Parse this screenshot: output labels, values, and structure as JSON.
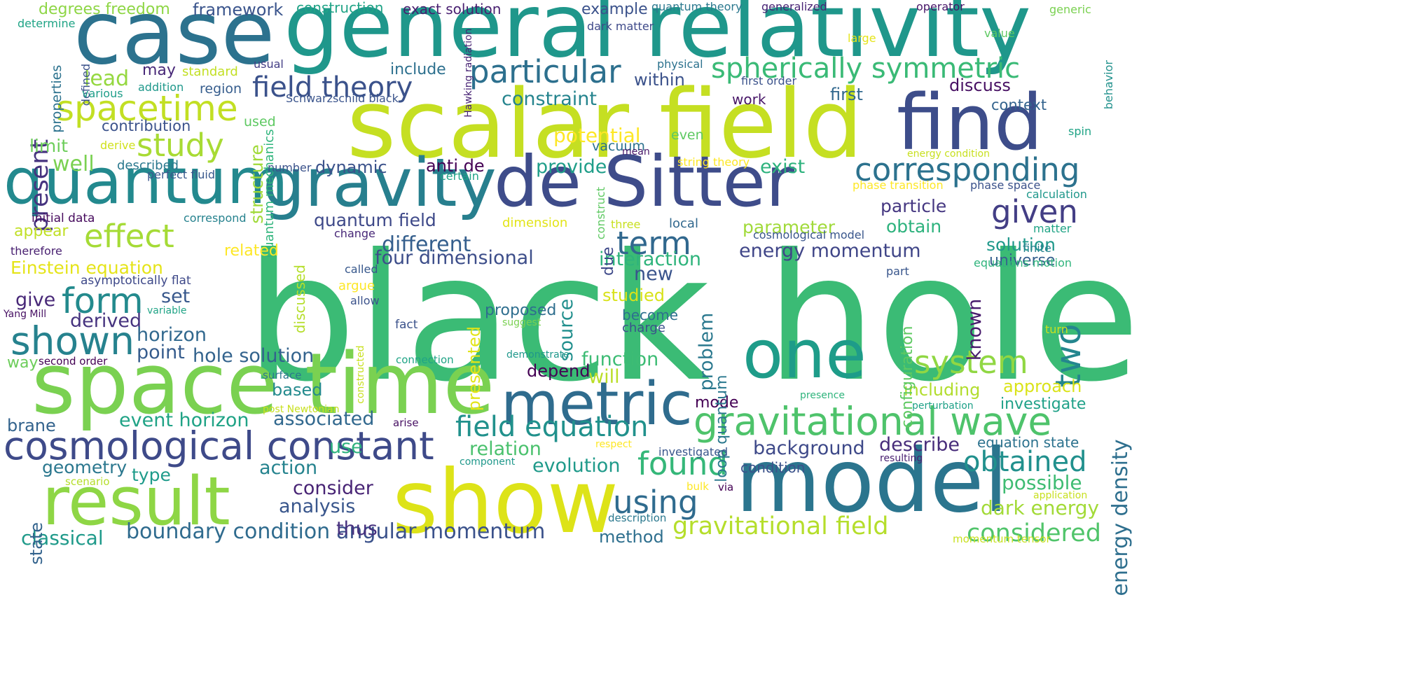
{
  "words": [
    {
      "text": "black hole",
      "color": "#3bbb75"
    },
    {
      "text": "scalar field",
      "color": "#c5df22"
    },
    {
      "text": "general relativity",
      "color": "#1f978b"
    },
    {
      "text": "case",
      "color": "#2c728e"
    },
    {
      "text": "space time",
      "color": "#7ad151"
    },
    {
      "text": "show",
      "color": "#dde318"
    },
    {
      "text": "de Sitter",
      "color": "#3e4c8a"
    },
    {
      "text": "model",
      "color": "#2b758e"
    },
    {
      "text": "find",
      "color": "#3d4d8a"
    },
    {
      "text": "quantum",
      "color": "#23898e"
    },
    {
      "text": "gravity",
      "color": "#277f8e"
    },
    {
      "text": "one",
      "color": "#1e9c89"
    },
    {
      "text": "metric",
      "color": "#2f6c8e"
    },
    {
      "text": "result",
      "color": "#8ed645"
    },
    {
      "text": "cosmological constant",
      "color": "#3e4a89"
    },
    {
      "text": "gravitational wave",
      "color": "#4ec36b"
    },
    {
      "text": "spacetime",
      "color": "#c2df23"
    },
    {
      "text": "particular",
      "color": "#2d708e"
    },
    {
      "text": "spherically symmetric",
      "color": "#3aba76"
    },
    {
      "text": "corresponding",
      "color": "#2c728e"
    },
    {
      "text": "field theory",
      "color": "#3b528b"
    },
    {
      "text": "given",
      "color": "#433e85"
    },
    {
      "text": "term",
      "color": "#31688e"
    },
    {
      "text": "effect",
      "color": "#a5db36"
    },
    {
      "text": "form",
      "color": "#238a8d"
    },
    {
      "text": "shown",
      "color": "#26828e"
    },
    {
      "text": "study",
      "color": "#a8db34"
    },
    {
      "text": "field equation",
      "color": "#21918c"
    },
    {
      "text": "found",
      "color": "#35b779"
    },
    {
      "text": "system",
      "color": "#90d743"
    },
    {
      "text": "using",
      "color": "#2f6b8e"
    },
    {
      "text": "obtained",
      "color": "#21908d"
    },
    {
      "text": "two",
      "color": "#24868e"
    },
    {
      "text": "energy density",
      "color": "#2e6f8e"
    },
    {
      "text": "gravitational field",
      "color": "#b5de2b"
    },
    {
      "text": "considered",
      "color": "#50c46a"
    },
    {
      "text": "boundary condition",
      "color": "#2f6b8e"
    },
    {
      "text": "angular momentum",
      "color": "#3b528b"
    },
    {
      "text": "classical",
      "color": "#1f9a8a"
    },
    {
      "text": "four dimensional",
      "color": "#3d4e8a"
    },
    {
      "text": "different",
      "color": "#355f8d"
    },
    {
      "text": "energy momentum",
      "color": "#404688"
    },
    {
      "text": "interaction",
      "color": "#2fb47c"
    },
    {
      "text": "background",
      "color": "#3e4989"
    },
    {
      "text": "describe",
      "color": "#472c7a"
    },
    {
      "text": "possible",
      "color": "#3fbc73"
    },
    {
      "text": "dark energy",
      "color": "#a2da37"
    },
    {
      "text": "equation state",
      "color": "#2c728e"
    },
    {
      "text": "Einstein equation",
      "color": "#e5e419"
    },
    {
      "text": "present",
      "color": "#46337f"
    },
    {
      "text": "lead",
      "color": "#95d840"
    },
    {
      "text": "limit",
      "color": "#6ccd5a"
    },
    {
      "text": "well",
      "color": "#7ad151"
    },
    {
      "text": "appear",
      "color": "#c0df25"
    },
    {
      "text": "give",
      "color": "#482878"
    },
    {
      "text": "set",
      "color": "#38588c"
    },
    {
      "text": "derived",
      "color": "#46337f"
    },
    {
      "text": "horizon",
      "color": "#31688e"
    },
    {
      "text": "point",
      "color": "#365c8d"
    },
    {
      "text": "hole solution",
      "color": "#33638d"
    },
    {
      "text": "event horizon",
      "color": "#20a386"
    },
    {
      "text": "associated",
      "color": "#31688e"
    },
    {
      "text": "use",
      "color": "#2db27d"
    },
    {
      "text": "action",
      "color": "#25838e"
    },
    {
      "text": "consider",
      "color": "#482475"
    },
    {
      "text": "analysis",
      "color": "#39568c"
    },
    {
      "text": "thus",
      "color": "#46307e"
    },
    {
      "text": "brane",
      "color": "#33638d"
    },
    {
      "text": "geometry",
      "color": "#2a778e"
    },
    {
      "text": "type",
      "color": "#1e9b8a"
    },
    {
      "text": "state",
      "color": "#33638d"
    },
    {
      "text": "way",
      "color": "#6ccd5a"
    },
    {
      "text": "based",
      "color": "#238a8d"
    },
    {
      "text": "relation",
      "color": "#4ac16d"
    },
    {
      "text": "evolution",
      "color": "#1f9a8a"
    },
    {
      "text": "method",
      "color": "#2e6f8e"
    },
    {
      "text": "source",
      "color": "#218f8d"
    },
    {
      "text": "problem",
      "color": "#2a788e"
    },
    {
      "text": "studied",
      "color": "#d8e219"
    },
    {
      "text": "become",
      "color": "#2d708e"
    },
    {
      "text": "new",
      "color": "#3a548c"
    },
    {
      "text": "function",
      "color": "#3dbc74"
    },
    {
      "text": "will",
      "color": "#bade28"
    },
    {
      "text": "depend",
      "color": "#440154"
    },
    {
      "text": "proposed",
      "color": "#2e6e8e"
    },
    {
      "text": "presented",
      "color": "#e2e418"
    },
    {
      "text": "potential",
      "color": "#fde725"
    },
    {
      "text": "provide",
      "color": "#1f9e89"
    },
    {
      "text": "exist",
      "color": "#2db27d"
    },
    {
      "text": "dynamic",
      "color": "#3b528b"
    },
    {
      "text": "anti de",
      "color": "#440154"
    },
    {
      "text": "quantum field",
      "color": "#3e4989"
    },
    {
      "text": "particle",
      "color": "#453781"
    },
    {
      "text": "parameter",
      "color": "#a0da39"
    },
    {
      "text": "obtain",
      "color": "#2db27d"
    },
    {
      "text": "solution",
      "color": "#1f988b"
    },
    {
      "text": "universe",
      "color": "#355f8d"
    },
    {
      "text": "known",
      "color": "#481b6d"
    },
    {
      "text": "approach",
      "color": "#dae319"
    },
    {
      "text": "including",
      "color": "#b2dd2d"
    },
    {
      "text": "investigate",
      "color": "#1fa188"
    },
    {
      "text": "configuration",
      "color": "#5ec962"
    },
    {
      "text": "mode",
      "color": "#440154"
    },
    {
      "text": "loop quantum",
      "color": "#2a788e"
    },
    {
      "text": "due",
      "color": "#3e4989"
    },
    {
      "text": "constraint",
      "color": "#25848e"
    },
    {
      "text": "discuss",
      "color": "#471063"
    },
    {
      "text": "first",
      "color": "#31688e"
    },
    {
      "text": "context",
      "color": "#33638d"
    },
    {
      "text": "work",
      "color": "#481668"
    },
    {
      "text": "within",
      "color": "#3b528b"
    },
    {
      "text": "include",
      "color": "#2d708e"
    },
    {
      "text": "may",
      "color": "#482878"
    },
    {
      "text": "standard",
      "color": "#c2df23"
    },
    {
      "text": "region",
      "color": "#365d8d"
    },
    {
      "text": "framework",
      "color": "#3a548c"
    },
    {
      "text": "degrees freedom",
      "color": "#8ed645"
    },
    {
      "text": "construction",
      "color": "#20a386"
    },
    {
      "text": "exact solution",
      "color": "#481f70"
    },
    {
      "text": "example",
      "color": "#3b528b"
    },
    {
      "text": "quantum theory",
      "color": "#2a788e"
    },
    {
      "text": "generalized",
      "color": "#482475"
    },
    {
      "text": "operator",
      "color": "#481668"
    },
    {
      "text": "generic",
      "color": "#7ad151"
    },
    {
      "text": "determine",
      "color": "#20a486"
    },
    {
      "text": "properties",
      "color": "#2c728e"
    },
    {
      "text": "defined",
      "color": "#3b528b"
    },
    {
      "text": "various",
      "color": "#1f9e89"
    },
    {
      "text": "addition",
      "color": "#1f988b"
    },
    {
      "text": "usual",
      "color": "#433e85"
    },
    {
      "text": "physical",
      "color": "#2c728e"
    },
    {
      "text": "Schwarzschild black",
      "color": "#3a548c"
    },
    {
      "text": "Hawking radiation",
      "color": "#482475"
    },
    {
      "text": "dark matter",
      "color": "#3e4989"
    },
    {
      "text": "first order",
      "color": "#3b528b"
    },
    {
      "text": "large",
      "color": "#e5e419"
    },
    {
      "text": "value",
      "color": "#5ec962"
    },
    {
      "text": "behavior",
      "color": "#21918c"
    },
    {
      "text": "spin",
      "color": "#20a386"
    },
    {
      "text": "energy condition",
      "color": "#c8e020"
    },
    {
      "text": "contribution",
      "color": "#3b528b"
    },
    {
      "text": "used",
      "color": "#5ec962"
    },
    {
      "text": "quantum mechanics",
      "color": "#2fb47c"
    },
    {
      "text": "structure",
      "color": "#a0da39"
    },
    {
      "text": "derive",
      "color": "#d0e11c"
    },
    {
      "text": "vacuum",
      "color": "#2c728e"
    },
    {
      "text": "even",
      "color": "#5ec962"
    },
    {
      "text": "mean",
      "color": "#481668"
    },
    {
      "text": "described",
      "color": "#2a788e"
    },
    {
      "text": "perfect fluid",
      "color": "#38588c"
    },
    {
      "text": "number",
      "color": "#3b528b"
    },
    {
      "text": "certain",
      "color": "#20a486"
    },
    {
      "text": "string theory",
      "color": "#fde725"
    },
    {
      "text": "phase transition",
      "color": "#fde725"
    },
    {
      "text": "phase space",
      "color": "#3b528b"
    },
    {
      "text": "calculation",
      "color": "#1f988b"
    },
    {
      "text": "initial data",
      "color": "#460a5d"
    },
    {
      "text": "correspond",
      "color": "#26828e"
    },
    {
      "text": "construct",
      "color": "#5ec962"
    },
    {
      "text": "three",
      "color": "#c8e020"
    },
    {
      "text": "dimension",
      "color": "#e2e418"
    },
    {
      "text": "local",
      "color": "#31688e"
    },
    {
      "text": "cosmological model",
      "color": "#39568c"
    },
    {
      "text": "matter",
      "color": "#20a486"
    },
    {
      "text": "change",
      "color": "#482878"
    },
    {
      "text": "therefore",
      "color": "#481f70"
    },
    {
      "text": "related",
      "color": "#fde725"
    },
    {
      "text": "finite",
      "color": "#26828e"
    },
    {
      "text": "equations motion",
      "color": "#2fb47c"
    },
    {
      "text": "part",
      "color": "#39568c"
    },
    {
      "text": "asymptotically flat",
      "color": "#3e4989"
    },
    {
      "text": "called",
      "color": "#38588c"
    },
    {
      "text": "argue",
      "color": "#fde725"
    },
    {
      "text": "allow",
      "color": "#3b528b"
    },
    {
      "text": "turn",
      "color": "#c8e020"
    },
    {
      "text": "Yang Mill",
      "color": "#471063"
    },
    {
      "text": "variable",
      "color": "#20a486"
    },
    {
      "text": "discussed",
      "color": "#b5de2b"
    },
    {
      "text": "fact",
      "color": "#3b528b"
    },
    {
      "text": "suggest",
      "color": "#7ad151"
    },
    {
      "text": "charge",
      "color": "#3b528b"
    },
    {
      "text": "demonstrate",
      "color": "#1f988b"
    },
    {
      "text": "second order",
      "color": "#440154"
    },
    {
      "text": "connection",
      "color": "#20a486"
    },
    {
      "text": "constructed",
      "color": "#c8e020"
    },
    {
      "text": "surface",
      "color": "#2a788e"
    },
    {
      "text": "presence",
      "color": "#2fb47c"
    },
    {
      "text": "perturbation",
      "color": "#1fa188"
    },
    {
      "text": "arise",
      "color": "#471063"
    },
    {
      "text": "post Newtonian",
      "color": "#c8e020"
    },
    {
      "text": "respect",
      "color": "#fde725"
    },
    {
      "text": "investigated",
      "color": "#39568c"
    },
    {
      "text": "component",
      "color": "#1f988b"
    },
    {
      "text": "resulting",
      "color": "#481f70"
    },
    {
      "text": "scenario",
      "color": "#b5de2b"
    },
    {
      "text": "condition",
      "color": "#3b528b"
    },
    {
      "text": "bulk",
      "color": "#fde725"
    },
    {
      "text": "via",
      "color": "#440154"
    },
    {
      "text": "application",
      "color": "#c8e020"
    },
    {
      "text": "description",
      "color": "#2a788e"
    },
    {
      "text": "momentum tensor",
      "color": "#c8e020"
    }
  ]
}
